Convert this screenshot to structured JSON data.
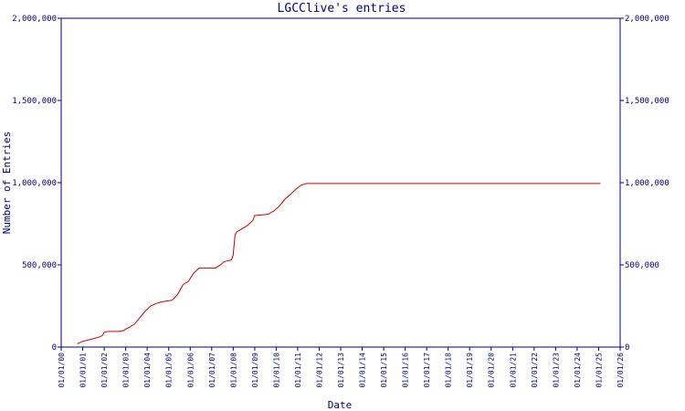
{
  "chart_data": {
    "type": "line",
    "title": "LGCClive's entries",
    "xlabel": "Date",
    "ylabel": "Number of Entries",
    "ylim": [
      0,
      2000000
    ],
    "y_ticks": [
      0,
      500000,
      1000000,
      1500000,
      2000000
    ],
    "y_tick_labels": [
      "0",
      "500,000",
      "1,000,000",
      "1,500,000",
      "2,000,000"
    ],
    "y_axis_right": true,
    "grid": false,
    "xlim": [
      "2000-01-01",
      "2026-01-01"
    ],
    "x_ticks": [
      "2000-01-01",
      "2001-01-01",
      "2002-01-01",
      "2003-01-01",
      "2004-01-01",
      "2005-01-01",
      "2006-01-01",
      "2007-01-01",
      "2008-01-01",
      "2009-01-01",
      "2010-01-01",
      "2011-01-01",
      "2012-01-01",
      "2013-01-01",
      "2014-01-01",
      "2015-01-01",
      "2016-01-01",
      "2017-01-01",
      "2018-01-01",
      "2019-01-01",
      "2020-01-01",
      "2021-01-01",
      "2022-01-01",
      "2023-01-01",
      "2024-01-01",
      "2025-01-01",
      "2026-01-01"
    ],
    "x_tick_labels": [
      "01/01/00",
      "01/01/01",
      "01/01/02",
      "01/01/03",
      "01/01/04",
      "01/01/05",
      "01/01/06",
      "01/01/07",
      "01/01/08",
      "01/01/09",
      "01/01/10",
      "01/01/11",
      "01/01/12",
      "01/01/13",
      "01/01/14",
      "01/01/15",
      "01/01/16",
      "01/01/17",
      "01/01/18",
      "01/01/19",
      "01/01/20",
      "01/01/21",
      "01/01/22",
      "01/01/23",
      "01/01/24",
      "01/01/25",
      "01/01/26"
    ],
    "colors": {
      "axis": "#000080",
      "text": "#000080",
      "line": "#cc0000",
      "background": "#ffffff"
    },
    "series": [
      {
        "x": [
          "2000-10-01",
          "2001-01-01",
          "2001-05-01",
          "2001-10-01",
          "2001-12-01",
          "2002-01-01",
          "2002-03-01",
          "2002-09-01",
          "2002-12-01",
          "2003-01-01",
          "2003-03-01",
          "2003-06-01",
          "2003-09-01",
          "2003-12-01",
          "2004-03-01",
          "2004-06-01",
          "2004-09-01",
          "2004-12-01",
          "2005-03-01",
          "2005-06-01",
          "2005-09-01",
          "2005-12-01",
          "2006-03-01",
          "2006-06-01",
          "2006-09-01",
          "2006-12-01",
          "2007-03-01",
          "2007-06-01",
          "2007-08-01",
          "2007-12-01",
          "2008-01-01",
          "2008-02-01",
          "2008-03-01",
          "2008-06-01",
          "2008-09-01",
          "2008-12-01",
          "2009-01-01",
          "2009-06-01",
          "2009-09-01",
          "2009-12-01",
          "2010-03-01",
          "2010-06-01",
          "2010-09-01",
          "2010-12-01",
          "2011-03-01",
          "2011-06-01",
          "2011-09-01",
          "2012-01-01",
          "2013-01-01",
          "2014-01-01",
          "2015-01-01",
          "2016-01-01",
          "2017-01-01",
          "2018-01-01",
          "2019-01-01",
          "2020-01-01",
          "2021-01-01",
          "2022-01-01",
          "2023-01-01",
          "2024-01-01",
          "2025-01-01",
          "2025-01-31"
        ],
        "y": [
          20000,
          35000,
          45000,
          60000,
          70000,
          90000,
          95000,
          95000,
          100000,
          110000,
          120000,
          140000,
          180000,
          220000,
          250000,
          265000,
          275000,
          280000,
          285000,
          320000,
          380000,
          400000,
          450000,
          480000,
          480000,
          480000,
          480000,
          500000,
          520000,
          530000,
          560000,
          680000,
          700000,
          720000,
          740000,
          770000,
          800000,
          805000,
          810000,
          830000,
          860000,
          900000,
          930000,
          960000,
          985000,
          995000,
          995000,
          995000,
          995000,
          995000,
          995000,
          995000,
          995000,
          995000,
          995000,
          995000,
          995000,
          995000,
          995000,
          995000,
          995000,
          995000
        ]
      }
    ]
  }
}
